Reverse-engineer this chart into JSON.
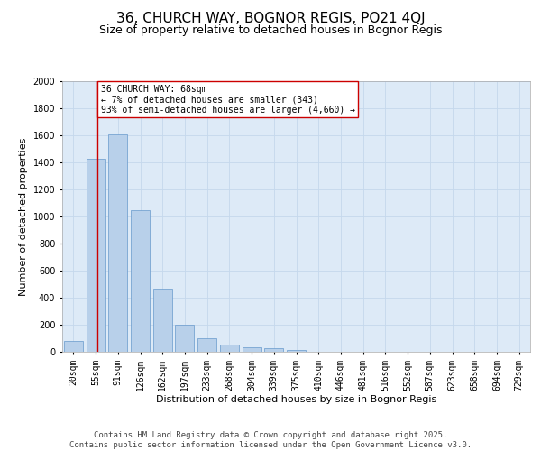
{
  "title_line1": "36, CHURCH WAY, BOGNOR REGIS, PO21 4QJ",
  "title_line2": "Size of property relative to detached houses in Bognor Regis",
  "xlabel": "Distribution of detached houses by size in Bognor Regis",
  "ylabel": "Number of detached properties",
  "categories": [
    "20sqm",
    "55sqm",
    "91sqm",
    "126sqm",
    "162sqm",
    "197sqm",
    "233sqm",
    "268sqm",
    "304sqm",
    "339sqm",
    "375sqm",
    "410sqm",
    "446sqm",
    "481sqm",
    "516sqm",
    "552sqm",
    "587sqm",
    "623sqm",
    "658sqm",
    "694sqm",
    "729sqm"
  ],
  "values": [
    80,
    1430,
    1610,
    1050,
    470,
    200,
    100,
    55,
    35,
    30,
    15,
    0,
    0,
    0,
    0,
    0,
    0,
    0,
    0,
    0,
    0
  ],
  "bar_color": "#b8d0ea",
  "bar_edge_color": "#6699cc",
  "grid_color": "#c5d8ec",
  "background_color": "#ddeaf7",
  "annotation_text_line1": "36 CHURCH WAY: 68sqm",
  "annotation_text_line2": "← 7% of detached houses are smaller (343)",
  "annotation_text_line3": "93% of semi-detached houses are larger (4,660) →",
  "annotation_box_color": "#ffffff",
  "annotation_box_edge_color": "#cc0000",
  "vline_x": 1.07,
  "ylim": [
    0,
    2000
  ],
  "yticks": [
    0,
    200,
    400,
    600,
    800,
    1000,
    1200,
    1400,
    1600,
    1800,
    2000
  ],
  "footer_line1": "Contains HM Land Registry data © Crown copyright and database right 2025.",
  "footer_line2": "Contains public sector information licensed under the Open Government Licence v3.0.",
  "title_fontsize": 11,
  "subtitle_fontsize": 9,
  "axis_label_fontsize": 8,
  "tick_fontsize": 7,
  "annotation_fontsize": 7,
  "footer_fontsize": 6.5
}
